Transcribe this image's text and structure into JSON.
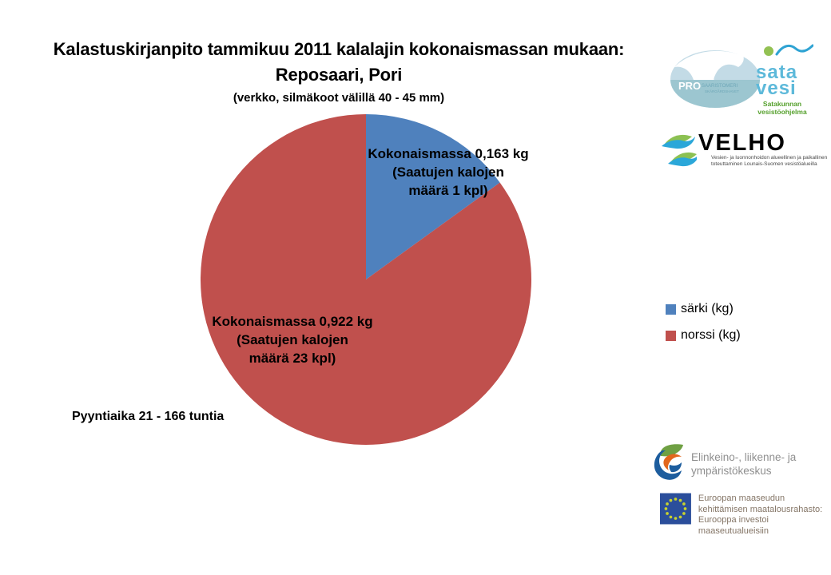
{
  "page": {
    "background": "#ffffff"
  },
  "chart_data": {
    "type": "pie",
    "title_lines": [
      "Kalastuskirjanpito tammikuu 2011 kalalajin kokonaismassan mukaan:",
      "Reposaari, Pori"
    ],
    "subtitle": "(verkko, silmäkoot välillä 40 - 45 mm)",
    "series": [
      {
        "name": "särki (kg)",
        "value": 0.163,
        "color": "#4f81bd",
        "count_kpl": 1,
        "label_lines": [
          "Kokonaismassa 0,163 kg",
          "(Saatujen kalojen",
          "määrä 1 kpl)"
        ]
      },
      {
        "name": "norssi (kg)",
        "value": 0.922,
        "color": "#c0504d",
        "count_kpl": 23,
        "label_lines": [
          "Kokonaismassa 0,922 kg",
          "(Saatujen kalojen",
          "määrä 23 kpl)"
        ]
      }
    ],
    "start_angle_deg": -90,
    "direction": "clockwise",
    "legend_position": "right",
    "annotation": "Pyyntiaika 21 - 166 tuntia"
  },
  "logos": {
    "pro_saaristomeri": {
      "text_pro": "PRO",
      "text_main": "SAARISTOMERI",
      "text_sub": "SKÄRGÅRDSHAVET",
      "ellipse_light": "#c3dbe6",
      "ellipse_teal": "#9cc6d0"
    },
    "satavesi": {
      "word1": "sata",
      "word2": "vesi",
      "sub1": "Satakunnan",
      "sub2": "vesistöohjelma",
      "blue": "#5db9da",
      "green": "#55a02c"
    },
    "velho": {
      "title": "VELHO",
      "tagline1": "Vesien- ja luonnonhoidon alueellinen ja paikallinen",
      "tagline2": "toteuttaminen Lounais-Suomen vesistöalueilla"
    },
    "ely": {
      "line1": "Elinkeino-, liikenne- ja",
      "line2": "ympäristökeskus"
    },
    "eu": {
      "line1": "Euroopan maaseudun",
      "line2": "kehittämisen maatalousrahasto:",
      "line3": "Eurooppa investoi maaseutualueisiin",
      "flag_bg": "#2b4e9b",
      "star_color": "#c8d22e"
    }
  }
}
